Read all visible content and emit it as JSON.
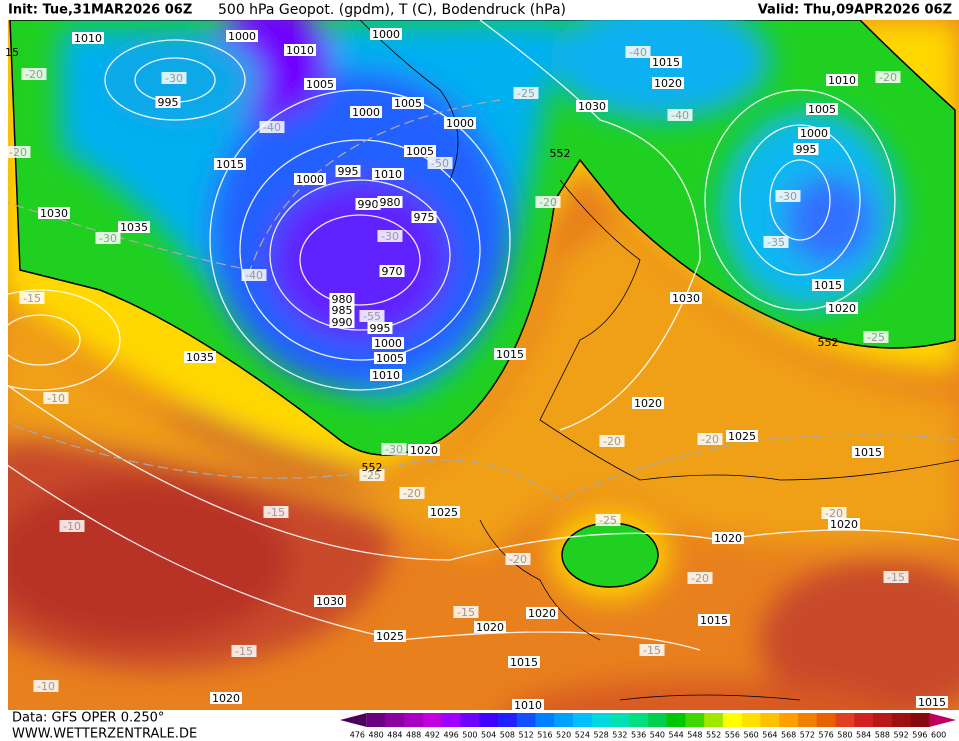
{
  "header": {
    "init": "Init: Tue,31MAR2026 06Z",
    "title": "500 hPa Geopot. (gpdm), T (C), Bodendruck (hPa)",
    "valid": "Valid: Thu,09APR2026 06Z"
  },
  "map": {
    "pressure_labels": [
      "1010",
      "1000",
      "1010",
      "1000",
      "1005",
      "995",
      "1000",
      "1005",
      "1000",
      "1030",
      "1015",
      "1020",
      "1010",
      "1005",
      "1000",
      "995",
      "1015",
      "1005",
      "995",
      "1010",
      "1000",
      "990",
      "980",
      "975",
      "1030",
      "1035",
      "970",
      "980",
      "985",
      "990",
      "995",
      "1000",
      "1005",
      "1010",
      "1015",
      "1035",
      "1030",
      "1015",
      "1020",
      "1020",
      "1025",
      "1015",
      "1020",
      "1025",
      "1020",
      "1020",
      "1030",
      "1025",
      "1020",
      "1020",
      "1015",
      "1015",
      "1020",
      "1010",
      "1015"
    ],
    "temperature_labels": [
      "-20",
      "-30",
      "-40",
      "-25",
      "-40",
      "-40",
      "-50",
      "-20",
      "-20",
      "-30",
      "-35",
      "-30",
      "-40",
      "-30",
      "-55",
      "-20",
      "-15",
      "-10",
      "-25",
      "-30",
      "-25",
      "-20",
      "-20",
      "-20",
      "-15",
      "-10",
      "-25",
      "-20",
      "-20",
      "-20",
      "-15",
      "-15",
      "-15",
      "-15",
      "-10"
    ],
    "height_labels": [
      "552",
      "552",
      "552"
    ],
    "edge_labels": [
      "15"
    ]
  },
  "colorbar": {
    "values": [
      476,
      480,
      484,
      488,
      492,
      496,
      500,
      504,
      508,
      512,
      516,
      520,
      524,
      528,
      532,
      536,
      540,
      544,
      548,
      552,
      556,
      560,
      564,
      568,
      572,
      576,
      580,
      584,
      588,
      592,
      596,
      600
    ],
    "colors": [
      "#4b0060",
      "#6a0080",
      "#8a00a0",
      "#a800c0",
      "#c000e0",
      "#a000ff",
      "#7000ff",
      "#4000ff",
      "#2020ff",
      "#1050ff",
      "#0080ff",
      "#00a0ff",
      "#00c0ff",
      "#00d8e0",
      "#00e0b0",
      "#00e080",
      "#00d050",
      "#00c800",
      "#40d800",
      "#a0e800",
      "#ffff00",
      "#ffe000",
      "#ffc000",
      "#ffa000",
      "#f08000",
      "#e86000",
      "#e04020",
      "#d02020",
      "#b81818",
      "#a01010",
      "#880810",
      "#c00060"
    ]
  },
  "footer": {
    "source": "Data: GFS OPER 0.250°",
    "website": "WWW.WETTERZENTRALE.DE"
  }
}
